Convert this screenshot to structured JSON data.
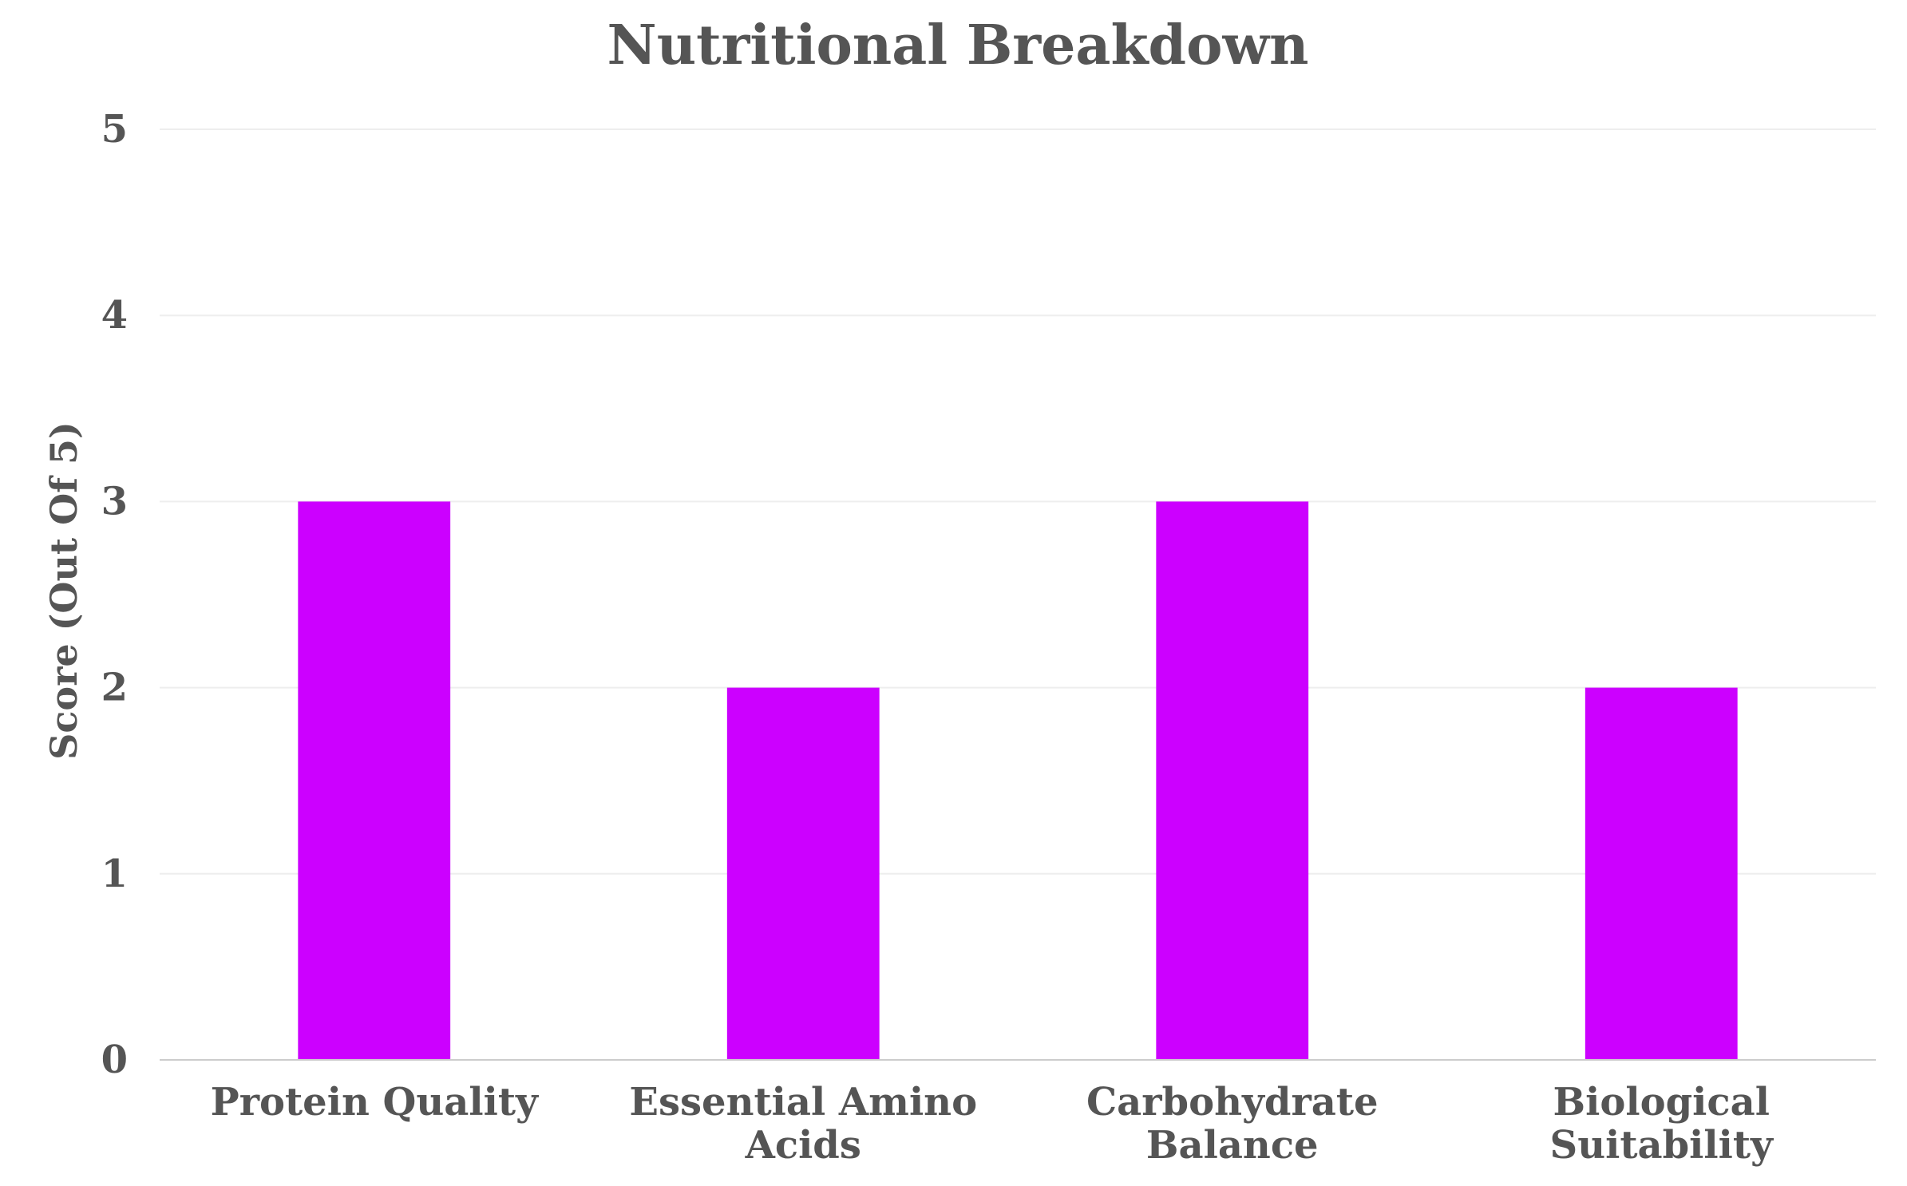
{
  "chart_data": {
    "type": "bar",
    "title": "Nutritional Breakdown",
    "xlabel": "",
    "ylabel": "Score (Out Of 5)",
    "categories": [
      [
        "Protein Quality"
      ],
      [
        "Essential Amino",
        "Acids"
      ],
      [
        "Carbohydrate",
        "Balance"
      ],
      [
        "Biological",
        "Suitability"
      ]
    ],
    "values": [
      3,
      2,
      3,
      2
    ],
    "ylim": [
      0,
      5
    ],
    "yticks": [
      0,
      1,
      2,
      3,
      4,
      5
    ],
    "grid": true,
    "legend": "none",
    "colors": {
      "bar": "#cc00ff",
      "text": "#555555",
      "grid": "#eeeeee",
      "axis": "#cccccc"
    }
  }
}
